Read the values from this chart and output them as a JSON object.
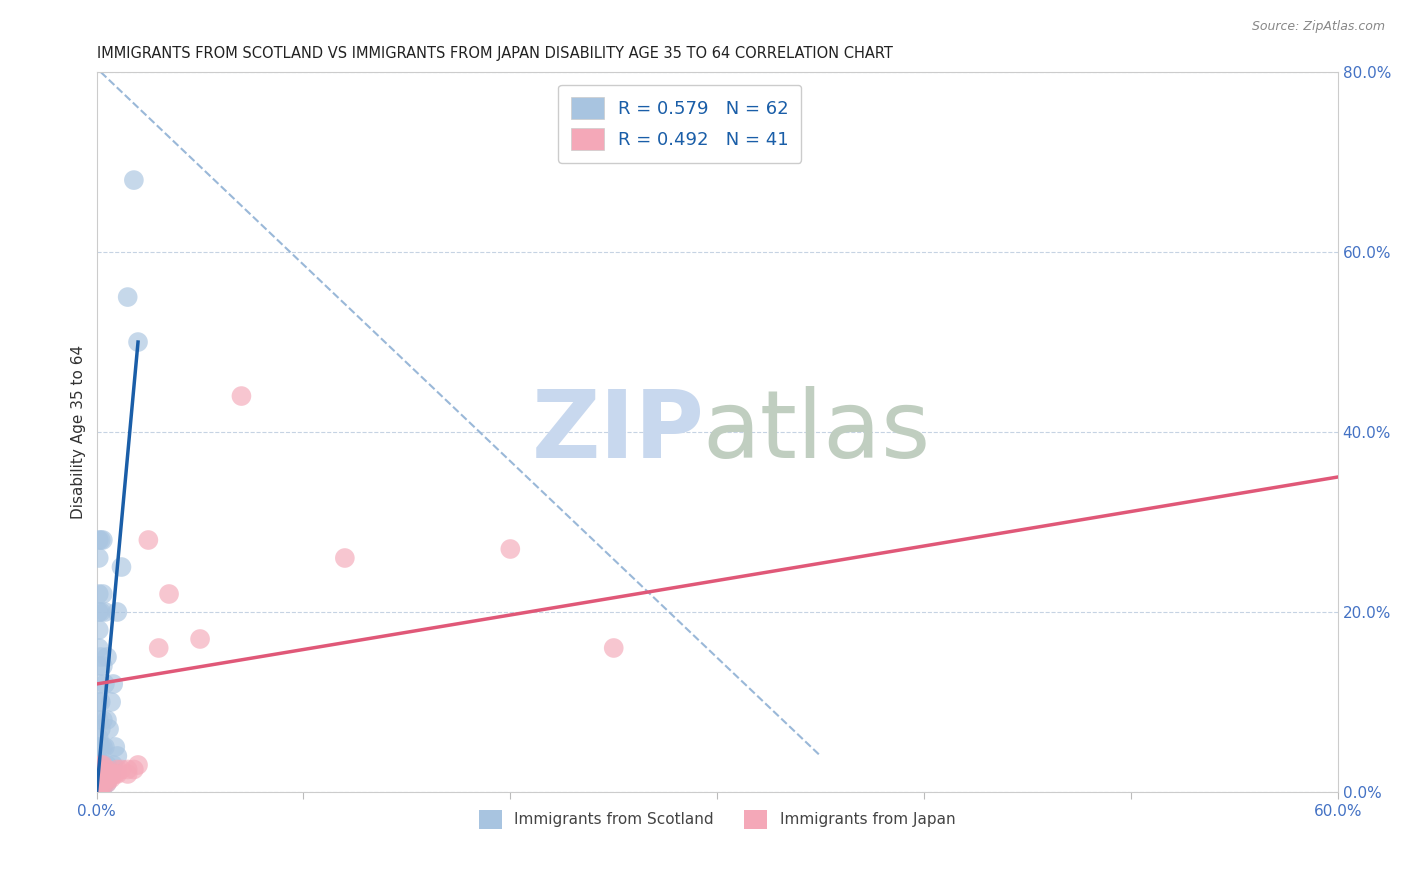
{
  "title": "IMMIGRANTS FROM SCOTLAND VS IMMIGRANTS FROM JAPAN DISABILITY AGE 35 TO 64 CORRELATION CHART",
  "source": "Source: ZipAtlas.com",
  "ylabel": "Disability Age 35 to 64",
  "xlim": [
    0.0,
    0.6
  ],
  "ylim": [
    0.0,
    0.8
  ],
  "legend_labels": [
    "Immigrants from Scotland",
    "Immigrants from Japan"
  ],
  "legend_R": [
    0.579,
    0.492
  ],
  "legend_N": [
    62,
    41
  ],
  "scotland_color": "#a8c4e0",
  "japan_color": "#f4a8b8",
  "scotland_line_color": "#1a5ea8",
  "japan_line_color": "#e05878",
  "diagonal_color": "#9ab8d8",
  "scotland_points": [
    [
      0.0005,
      0.005
    ],
    [
      0.001,
      0.008
    ],
    [
      0.001,
      0.012
    ],
    [
      0.001,
      0.015
    ],
    [
      0.001,
      0.02
    ],
    [
      0.001,
      0.025
    ],
    [
      0.001,
      0.03
    ],
    [
      0.001,
      0.035
    ],
    [
      0.001,
      0.05
    ],
    [
      0.001,
      0.06
    ],
    [
      0.001,
      0.08
    ],
    [
      0.001,
      0.1
    ],
    [
      0.001,
      0.12
    ],
    [
      0.001,
      0.14
    ],
    [
      0.001,
      0.16
    ],
    [
      0.001,
      0.18
    ],
    [
      0.001,
      0.2
    ],
    [
      0.001,
      0.22
    ],
    [
      0.001,
      0.26
    ],
    [
      0.001,
      0.28
    ],
    [
      0.002,
      0.005
    ],
    [
      0.002,
      0.01
    ],
    [
      0.002,
      0.015
    ],
    [
      0.002,
      0.02
    ],
    [
      0.002,
      0.025
    ],
    [
      0.002,
      0.03
    ],
    [
      0.002,
      0.05
    ],
    [
      0.002,
      0.07
    ],
    [
      0.002,
      0.1
    ],
    [
      0.002,
      0.15
    ],
    [
      0.002,
      0.2
    ],
    [
      0.002,
      0.28
    ],
    [
      0.003,
      0.005
    ],
    [
      0.003,
      0.01
    ],
    [
      0.003,
      0.02
    ],
    [
      0.003,
      0.05
    ],
    [
      0.003,
      0.08
    ],
    [
      0.003,
      0.14
    ],
    [
      0.003,
      0.22
    ],
    [
      0.003,
      0.28
    ],
    [
      0.004,
      0.01
    ],
    [
      0.004,
      0.02
    ],
    [
      0.004,
      0.05
    ],
    [
      0.004,
      0.12
    ],
    [
      0.004,
      0.2
    ],
    [
      0.005,
      0.01
    ],
    [
      0.005,
      0.03
    ],
    [
      0.005,
      0.08
    ],
    [
      0.005,
      0.15
    ],
    [
      0.006,
      0.02
    ],
    [
      0.006,
      0.07
    ],
    [
      0.007,
      0.02
    ],
    [
      0.007,
      0.1
    ],
    [
      0.008,
      0.03
    ],
    [
      0.008,
      0.12
    ],
    [
      0.009,
      0.05
    ],
    [
      0.01,
      0.04
    ],
    [
      0.01,
      0.2
    ],
    [
      0.012,
      0.25
    ],
    [
      0.015,
      0.55
    ],
    [
      0.018,
      0.68
    ],
    [
      0.02,
      0.5
    ]
  ],
  "japan_points": [
    [
      0.001,
      0.005
    ],
    [
      0.001,
      0.01
    ],
    [
      0.001,
      0.015
    ],
    [
      0.001,
      0.02
    ],
    [
      0.001,
      0.025
    ],
    [
      0.002,
      0.005
    ],
    [
      0.002,
      0.01
    ],
    [
      0.002,
      0.02
    ],
    [
      0.002,
      0.025
    ],
    [
      0.002,
      0.03
    ],
    [
      0.003,
      0.01
    ],
    [
      0.003,
      0.015
    ],
    [
      0.003,
      0.02
    ],
    [
      0.003,
      0.03
    ],
    [
      0.004,
      0.01
    ],
    [
      0.004,
      0.015
    ],
    [
      0.004,
      0.02
    ],
    [
      0.005,
      0.01
    ],
    [
      0.005,
      0.02
    ],
    [
      0.005,
      0.025
    ],
    [
      0.006,
      0.015
    ],
    [
      0.006,
      0.02
    ],
    [
      0.007,
      0.015
    ],
    [
      0.007,
      0.02
    ],
    [
      0.008,
      0.02
    ],
    [
      0.009,
      0.02
    ],
    [
      0.01,
      0.02
    ],
    [
      0.01,
      0.025
    ],
    [
      0.012,
      0.025
    ],
    [
      0.015,
      0.02
    ],
    [
      0.015,
      0.025
    ],
    [
      0.018,
      0.025
    ],
    [
      0.02,
      0.03
    ],
    [
      0.025,
      0.28
    ],
    [
      0.03,
      0.16
    ],
    [
      0.035,
      0.22
    ],
    [
      0.05,
      0.17
    ],
    [
      0.07,
      0.44
    ],
    [
      0.12,
      0.26
    ],
    [
      0.2,
      0.27
    ],
    [
      0.25,
      0.16
    ]
  ],
  "scotland_reg_line": [
    [
      0.0,
      0.0
    ],
    [
      0.02,
      0.5
    ]
  ],
  "japan_reg_line": [
    [
      0.0,
      0.12
    ],
    [
      0.6,
      0.35
    ]
  ],
  "diagonal_line": [
    [
      0.002,
      0.8
    ],
    [
      0.35,
      0.04
    ]
  ]
}
